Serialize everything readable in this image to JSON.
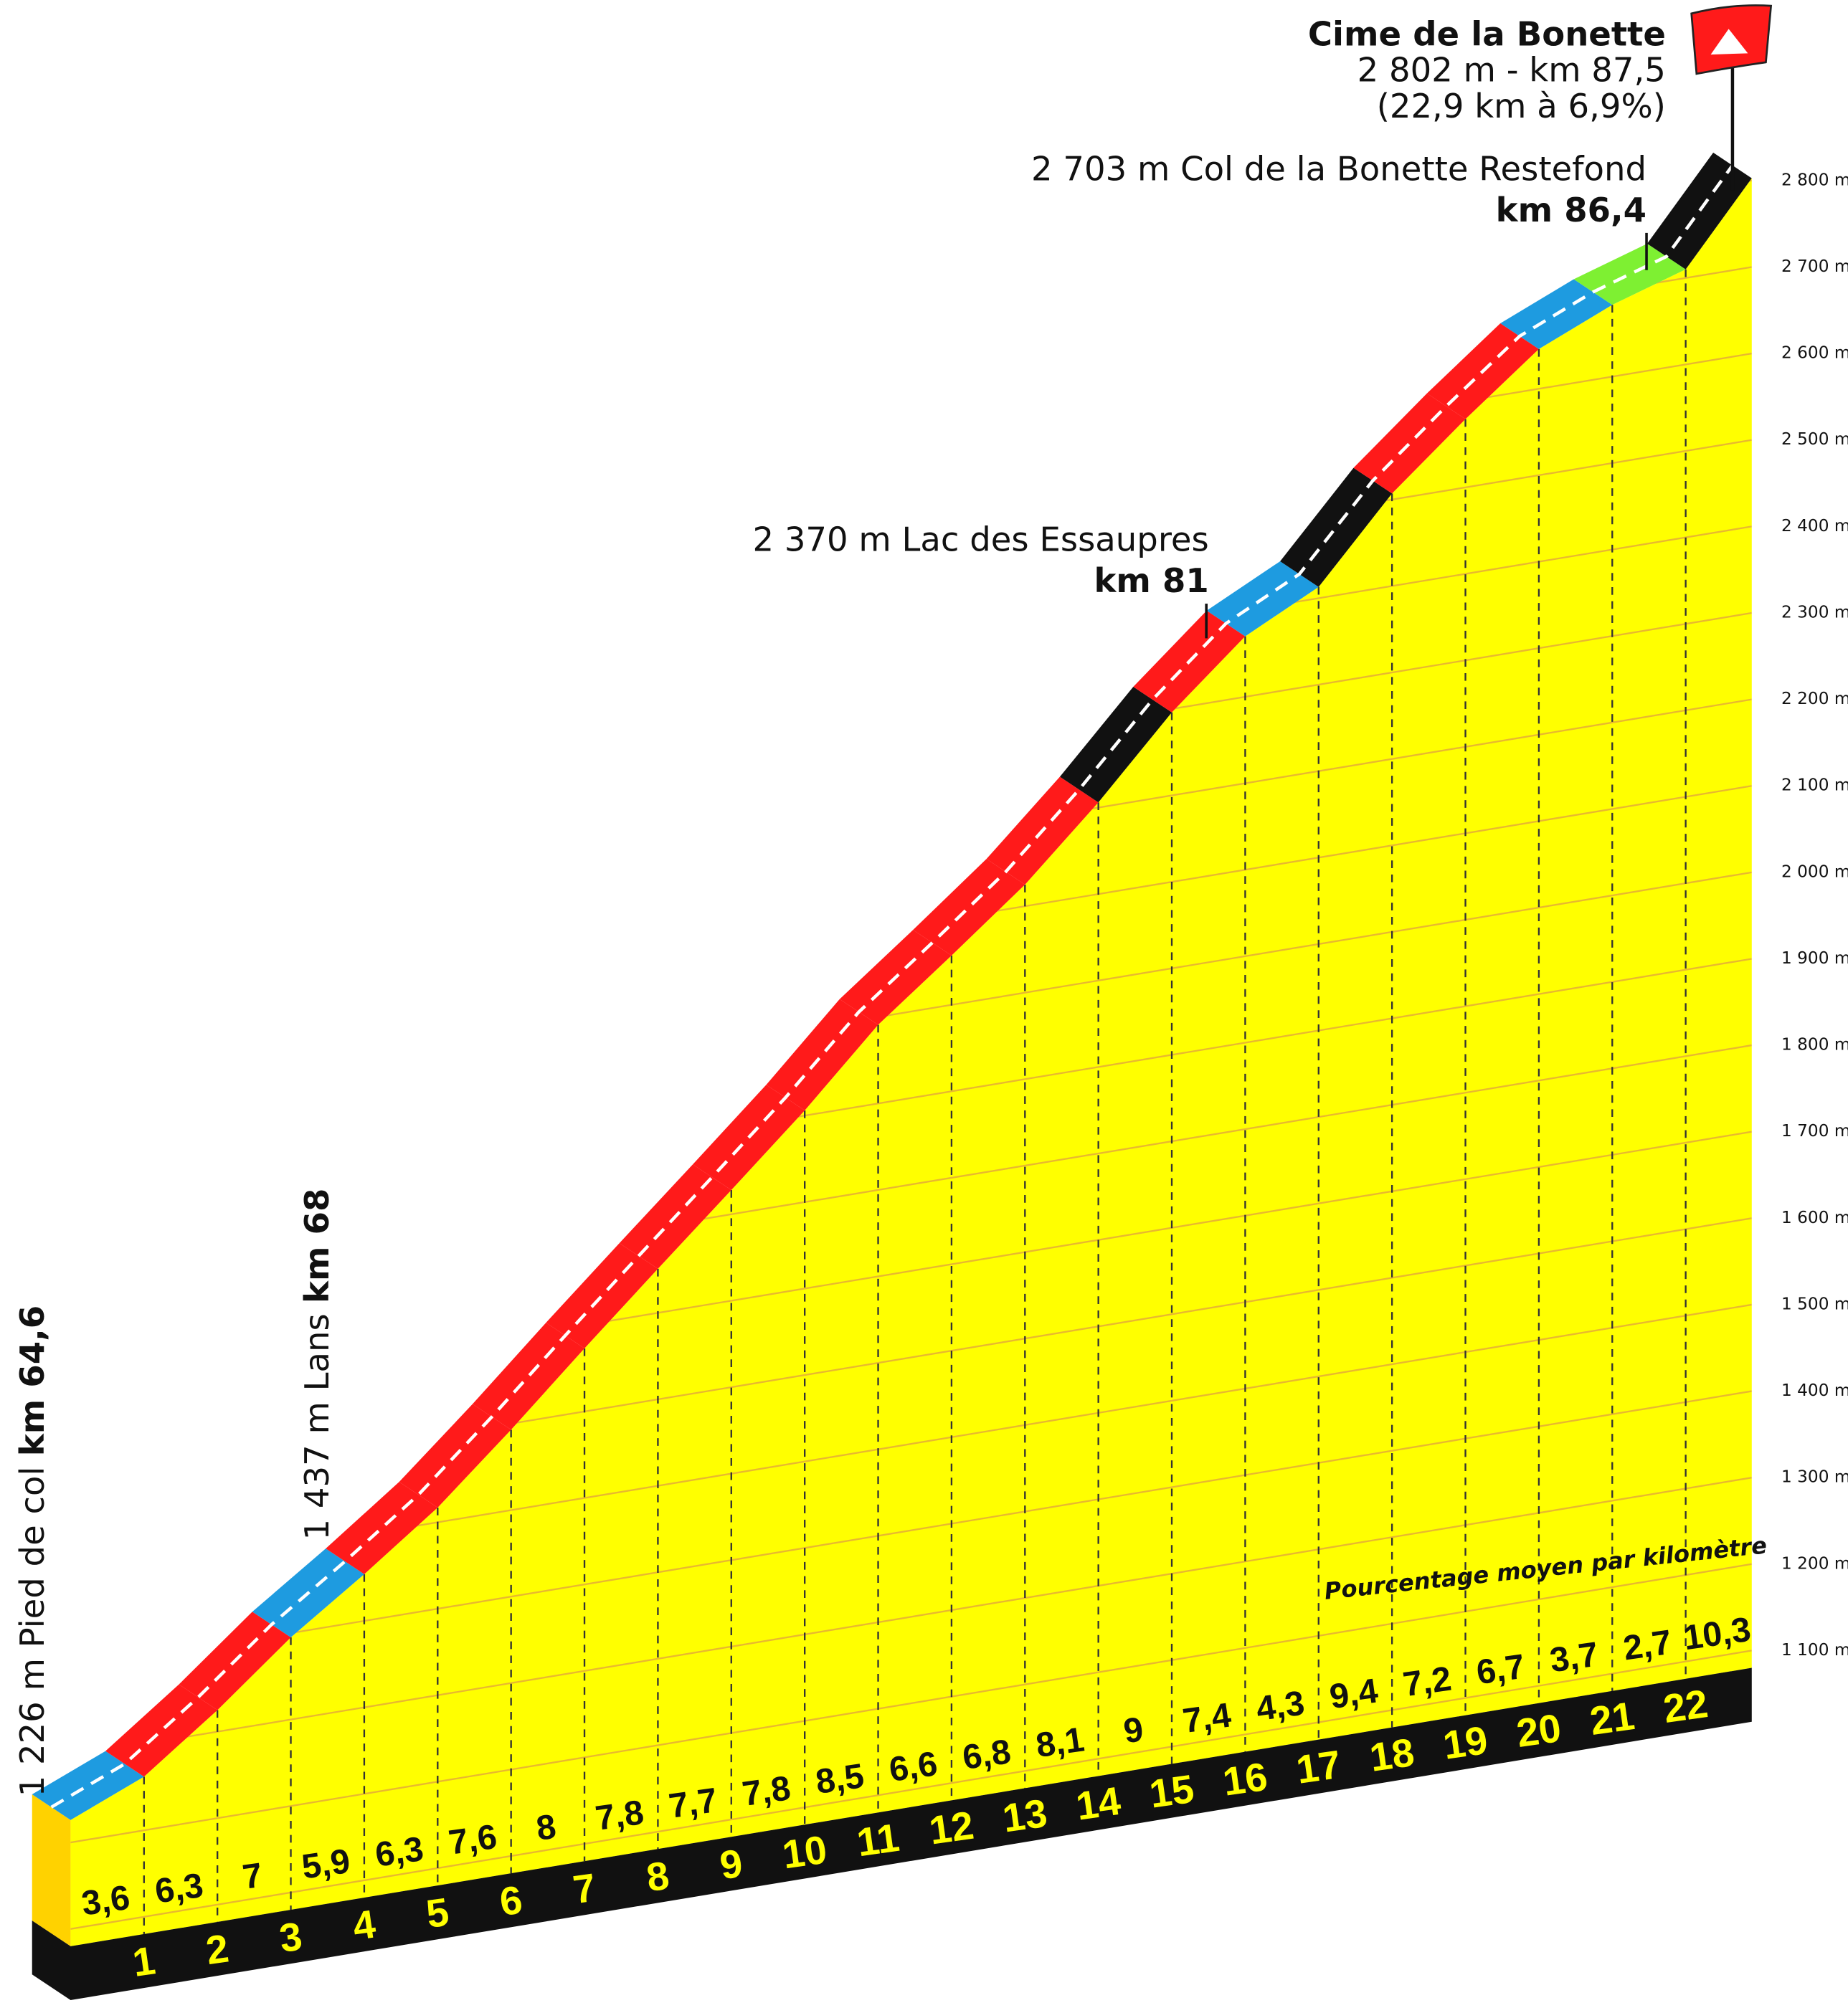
{
  "chart_data": {
    "type": "climb-profile",
    "title": "Cime de la Bonette",
    "subtitle": "2 802 m - km 87,5",
    "summary": "(22,9 km à 6,9%)",
    "note": "Pourcentage moyen par kilomètre",
    "annotations": [
      {
        "label": "1 226 m Pied de col",
        "km": "km 64,6"
      },
      {
        "label": "1 437 m Lans",
        "km": "km 68"
      },
      {
        "label": "2 370 m Lac des Essaupres",
        "km": "km 81"
      },
      {
        "label": "2 703 m Col de la Bonette Restefond",
        "km": "km 86,4"
      }
    ],
    "start_elevation": 1226,
    "xlim": [
      0,
      22.9
    ],
    "ylim": [
      1080,
      2830
    ],
    "yticks": [
      {
        "value": 1100,
        "label": "1 100 m"
      },
      {
        "value": 1200,
        "label": "1 200 m"
      },
      {
        "value": 1300,
        "label": "1 300 m"
      },
      {
        "value": 1400,
        "label": "1 400 m"
      },
      {
        "value": 1500,
        "label": "1 500 m"
      },
      {
        "value": 1600,
        "label": "1 600 m"
      },
      {
        "value": 1700,
        "label": "1 700 m"
      },
      {
        "value": 1800,
        "label": "1 800 m"
      },
      {
        "value": 1900,
        "label": "1 900 m"
      },
      {
        "value": 2000,
        "label": "2 000 m"
      },
      {
        "value": 2100,
        "label": "2 100 m"
      },
      {
        "value": 2200,
        "label": "2 200 m"
      },
      {
        "value": 2300,
        "label": "2 300 m"
      },
      {
        "value": 2400,
        "label": "2 400 m"
      },
      {
        "value": 2500,
        "label": "2 500 m"
      },
      {
        "value": 2600,
        "label": "2 600 m"
      },
      {
        "value": 2700,
        "label": "2 700 m"
      },
      {
        "value": 2800,
        "label": "2 800 m"
      }
    ],
    "grid": true,
    "km_markers": [
      1,
      2,
      3,
      4,
      5,
      6,
      7,
      8,
      9,
      10,
      11,
      12,
      13,
      14,
      15,
      16,
      17,
      18,
      19,
      20,
      21,
      22
    ],
    "values": [
      3.6,
      6.3,
      7,
      5.9,
      6.3,
      7.6,
      8,
      7.8,
      7.7,
      7.8,
      8.5,
      6.6,
      6.8,
      8.1,
      9,
      7.4,
      4.3,
      9.4,
      7.2,
      6.7,
      3.7,
      2.7,
      10.3
    ],
    "value_labels": [
      "3,6",
      "6,3",
      "7",
      "5,9",
      "6,3",
      "7,6",
      "8",
      "7,8",
      "7,7",
      "7,8",
      "8,5",
      "6,6",
      "6,8",
      "8,1",
      "9",
      "7,4",
      "4,3",
      "9,4",
      "7,2",
      "6,7",
      "3,7",
      "2,7",
      "10,3"
    ],
    "colors": [
      "#1e9be0",
      "#ff1a1a",
      "#ff1a1a",
      "#1e9be0",
      "#ff1a1a",
      "#ff1a1a",
      "#ff1a1a",
      "#ff1a1a",
      "#ff1a1a",
      "#ff1a1a",
      "#ff1a1a",
      "#ff1a1a",
      "#ff1a1a",
      "#ff1a1a",
      "#111111",
      "#ff1a1a",
      "#1e9be0",
      "#111111",
      "#ff1a1a",
      "#ff1a1a",
      "#1e9be0",
      "#7ef032",
      "#111111"
    ]
  }
}
